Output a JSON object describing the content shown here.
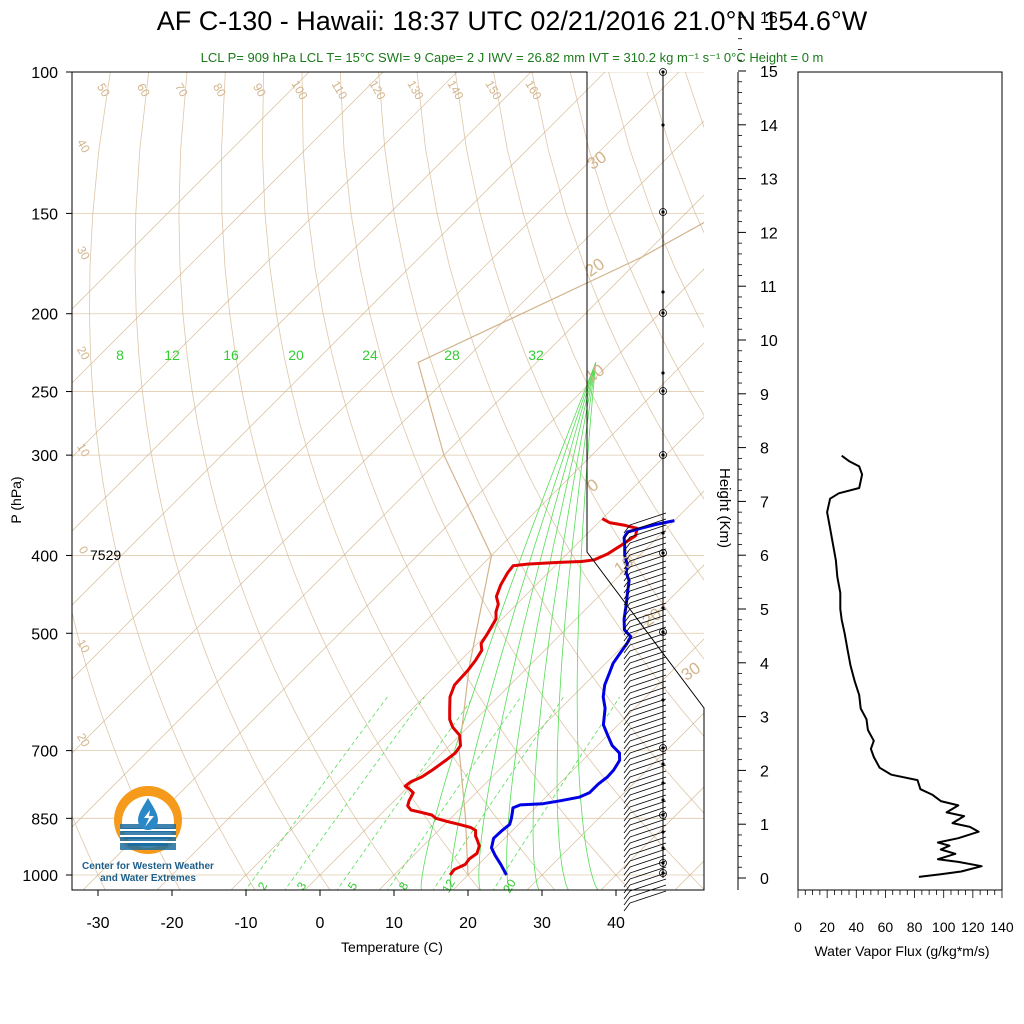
{
  "title": "AF C-130 - Hawaii: 18:37 UTC 02/21/2016  21.0°N 154.6°W",
  "subtitle": "LCL P= 909 hPa  LCL T= 15°C  SWI= 9  Cape= 2 J  IWV = 26.82 mm  IVT = 310.2 kg m⁻¹ s⁻¹  0°C Height = 0 m",
  "logo": {
    "caption_line1": "Center for Western Weather",
    "caption_line2": "and Water Extremes",
    "icon": "water-drop-sun-icon"
  },
  "colors": {
    "temperature": "#e00000",
    "dewpoint": "#0000e6",
    "isotherm": "#d2b48c",
    "mixing_ratio": "#55dd55",
    "moist_adiabat": "#55dd55",
    "flux": "#000000",
    "subtitle": "#1a7a1a"
  },
  "chart_data": [
    {
      "type": "line",
      "name": "skew-t",
      "xlabel": "Temperature (C)",
      "ylabel": "P (hPa)",
      "x_ticks": [
        "-30",
        "-20",
        "-10",
        "0",
        "10",
        "20",
        "30",
        "40"
      ],
      "y_ticks": [
        "100",
        "150",
        "200",
        "250",
        "300",
        "400",
        "500",
        "700",
        "850",
        "1000"
      ],
      "xlim": [
        -34,
        52
      ],
      "ylim": [
        1050,
        100
      ],
      "log_pressure": true,
      "dry_adiabat_labels": [
        "50",
        "60",
        "70",
        "80",
        "90",
        "100",
        "110",
        "120",
        "130",
        "140",
        "150",
        "160",
        "40",
        "30",
        "20",
        "10",
        "0",
        "10",
        "20"
      ],
      "isotherm_right_labels": [
        "30",
        "20",
        "10",
        "0",
        "10",
        "20",
        "30"
      ],
      "mixing_ratio_top_labels": [
        "8",
        "12",
        "16",
        "20",
        "24",
        "28",
        "32"
      ],
      "moist_bottom_labels": [
        "2",
        "3",
        "5",
        "8",
        "12",
        "20"
      ],
      "annotation_label": "7529",
      "annotation_pressure": 400,
      "series": [
        {
          "key": "temperature",
          "points": [
            [
              17.6,
              1000
            ],
            [
              17.4,
              985
            ],
            [
              18.2,
              970
            ],
            [
              18.0,
              955
            ],
            [
              18.3,
              940
            ],
            [
              17.6,
              920
            ],
            [
              16.2,
              900
            ],
            [
              15.8,
              895
            ],
            [
              15.0,
              880
            ],
            [
              14.0,
              873
            ],
            [
              12.0,
              865
            ],
            [
              10.0,
              858
            ],
            [
              8.0,
              850
            ],
            [
              7.0,
              842
            ],
            [
              5.0,
              835
            ],
            [
              3.5,
              830
            ],
            [
              2.5,
              820
            ],
            [
              2.0,
              808
            ],
            [
              1.5,
              790
            ],
            [
              0.5,
              782
            ],
            [
              -0.5,
              775
            ],
            [
              -0.3,
              765
            ],
            [
              0.5,
              755
            ],
            [
              1.0,
              740
            ],
            [
              1.5,
              720
            ],
            [
              1.8,
              705
            ],
            [
              1.5,
              690
            ],
            [
              0,
              670
            ],
            [
              -2.0,
              655
            ],
            [
              -3.5,
              640
            ],
            [
              -5.0,
              620
            ],
            [
              -6.5,
              600
            ],
            [
              -7.5,
              580
            ],
            [
              -7.7,
              555
            ],
            [
              -8.0,
              540
            ],
            [
              -8.5,
              525
            ],
            [
              -9.5,
              515
            ],
            [
              -10.0,
              500
            ],
            [
              -10.8,
              480
            ],
            [
              -11.8,
              470
            ],
            [
              -12.5,
              460
            ],
            [
              -13.8,
              450
            ],
            [
              -14.8,
              435
            ],
            [
              -15.5,
              420
            ],
            [
              -15.7,
              412
            ],
            [
              -14.0,
              410
            ],
            [
              -10.0,
              408
            ],
            [
              -7.0,
              407
            ],
            [
              -5.5,
              405
            ],
            [
              -4.5,
              398
            ],
            [
              -3.8,
              388
            ],
            [
              -3.2,
              378
            ],
            [
              -4.0,
              370
            ],
            [
              -6.0,
              367
            ],
            [
              -8.5,
              364
            ],
            [
              -10.0,
              360
            ]
          ]
        },
        {
          "key": "dewpoint",
          "points": [
            [
              25.2,
              1000
            ],
            [
              23.0,
              970
            ],
            [
              21.0,
              945
            ],
            [
              19.5,
              925
            ],
            [
              18.5,
              900
            ],
            [
              18.6,
              880
            ],
            [
              18.8,
              865
            ],
            [
              18.2,
              850
            ],
            [
              17.5,
              835
            ],
            [
              17.0,
              825
            ],
            [
              17.6,
              818
            ],
            [
              20.5,
              815
            ],
            [
              22.5,
              808
            ],
            [
              24.5,
              800
            ],
            [
              25.3,
              790
            ],
            [
              25.3,
              770
            ],
            [
              25.6,
              755
            ],
            [
              25.5,
              740
            ],
            [
              25.0,
              720
            ],
            [
              24.0,
              705
            ],
            [
              22.0,
              690
            ],
            [
              20.0,
              670
            ],
            [
              18.0,
              650
            ],
            [
              16.0,
              620
            ],
            [
              14.2,
              600
            ],
            [
              12.8,
              580
            ],
            [
              11.8,
              560
            ],
            [
              11.0,
              545
            ],
            [
              10.6,
              530
            ],
            [
              10.2,
              515
            ],
            [
              9.8,
              505
            ],
            [
              8.0,
              495
            ],
            [
              6.5,
              480
            ],
            [
              4.8,
              460
            ],
            [
              3.4,
              445
            ],
            [
              2.0,
              430
            ],
            [
              0.5,
              420
            ],
            [
              -0.5,
              410
            ],
            [
              -2.0,
              400
            ],
            [
              -3.2,
              390
            ],
            [
              -4.5,
              380
            ],
            [
              -4.8,
              374
            ],
            [
              -3.5,
              370
            ],
            [
              -2.0,
              366
            ],
            [
              0,
              362
            ]
          ]
        }
      ]
    },
    {
      "type": "line",
      "name": "water-vapor-flux",
      "xlabel": "Water Vapor Flux (g/kg*m/s)",
      "ylabel": "Height (Km)",
      "x_ticks": [
        "0",
        "20",
        "40",
        "60",
        "80",
        "100",
        "120",
        "140"
      ],
      "y_ticks": [
        "0",
        "1",
        "2",
        "3",
        "4",
        "5",
        "6",
        "7",
        "8",
        "9",
        "10",
        "11",
        "12",
        "13",
        "14",
        "15",
        "16"
      ],
      "xlim": [
        0,
        140
      ],
      "ylim": [
        -0.2,
        16.3
      ],
      "points": [
        [
          83,
          0.02
        ],
        [
          98,
          0.07
        ],
        [
          112,
          0.12
        ],
        [
          126,
          0.22
        ],
        [
          110,
          0.3
        ],
        [
          96,
          0.35
        ],
        [
          108,
          0.45
        ],
        [
          98,
          0.53
        ],
        [
          104,
          0.6
        ],
        [
          96,
          0.66
        ],
        [
          110,
          0.74
        ],
        [
          124,
          0.86
        ],
        [
          118,
          0.95
        ],
        [
          106,
          1.02
        ],
        [
          114,
          1.15
        ],
        [
          102,
          1.22
        ],
        [
          110,
          1.35
        ],
        [
          98,
          1.43
        ],
        [
          92,
          1.55
        ],
        [
          84,
          1.65
        ],
        [
          82,
          1.82
        ],
        [
          64,
          1.92
        ],
        [
          56,
          2.05
        ],
        [
          52,
          2.25
        ],
        [
          50,
          2.4
        ],
        [
          52,
          2.55
        ],
        [
          48,
          2.75
        ],
        [
          47,
          2.95
        ],
        [
          43,
          3.15
        ],
        [
          42,
          3.4
        ],
        [
          39,
          3.65
        ],
        [
          36,
          3.95
        ],
        [
          34,
          4.25
        ],
        [
          32,
          4.55
        ],
        [
          30,
          4.8
        ],
        [
          29,
          5.0
        ],
        [
          29,
          5.3
        ],
        [
          27,
          5.6
        ],
        [
          26,
          5.9
        ],
        [
          24,
          6.2
        ],
        [
          22,
          6.5
        ],
        [
          20,
          6.8
        ],
        [
          22,
          7.05
        ],
        [
          28,
          7.15
        ],
        [
          42,
          7.25
        ],
        [
          44,
          7.5
        ],
        [
          42,
          7.65
        ],
        [
          35,
          7.75
        ],
        [
          30,
          7.85
        ]
      ]
    }
  ]
}
